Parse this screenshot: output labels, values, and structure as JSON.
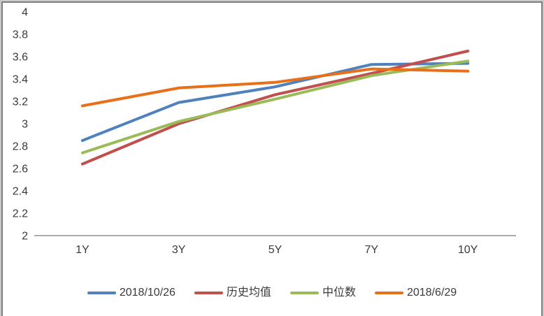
{
  "chart_data": {
    "type": "line",
    "categories": [
      "1Y",
      "3Y",
      "5Y",
      "7Y",
      "10Y"
    ],
    "series": [
      {
        "name": "2018/10/26",
        "color": "#4F81BD",
        "values": [
          2.85,
          3.19,
          3.33,
          3.53,
          3.54
        ]
      },
      {
        "name": "历史均值",
        "color": "#C0504D",
        "values": [
          2.64,
          3.0,
          3.26,
          3.45,
          3.65
        ]
      },
      {
        "name": "中位数",
        "color": "#9BBB59",
        "values": [
          2.74,
          3.02,
          3.22,
          3.43,
          3.56
        ]
      },
      {
        "name": "2018/6/29",
        "color": "#E8701A",
        "values": [
          3.16,
          3.32,
          3.37,
          3.49,
          3.47
        ]
      }
    ],
    "title": "",
    "xlabel": "",
    "ylabel": "",
    "ylim": [
      2,
      4
    ],
    "ytick_step": 0.2,
    "ytick_labels": [
      "2",
      "2.2",
      "2.4",
      "2.6",
      "2.8",
      "3",
      "3.2",
      "3.4",
      "3.6",
      "3.8",
      "4"
    ],
    "grid": false,
    "legend_position": "bottom"
  },
  "style": {
    "axis_line_color": "#919191",
    "tick_label_color": "#3a3a3a",
    "frame_inner_border": "#7f7f7f",
    "frame_outer_border": "#c9c9c9",
    "background": "#ffffff"
  }
}
